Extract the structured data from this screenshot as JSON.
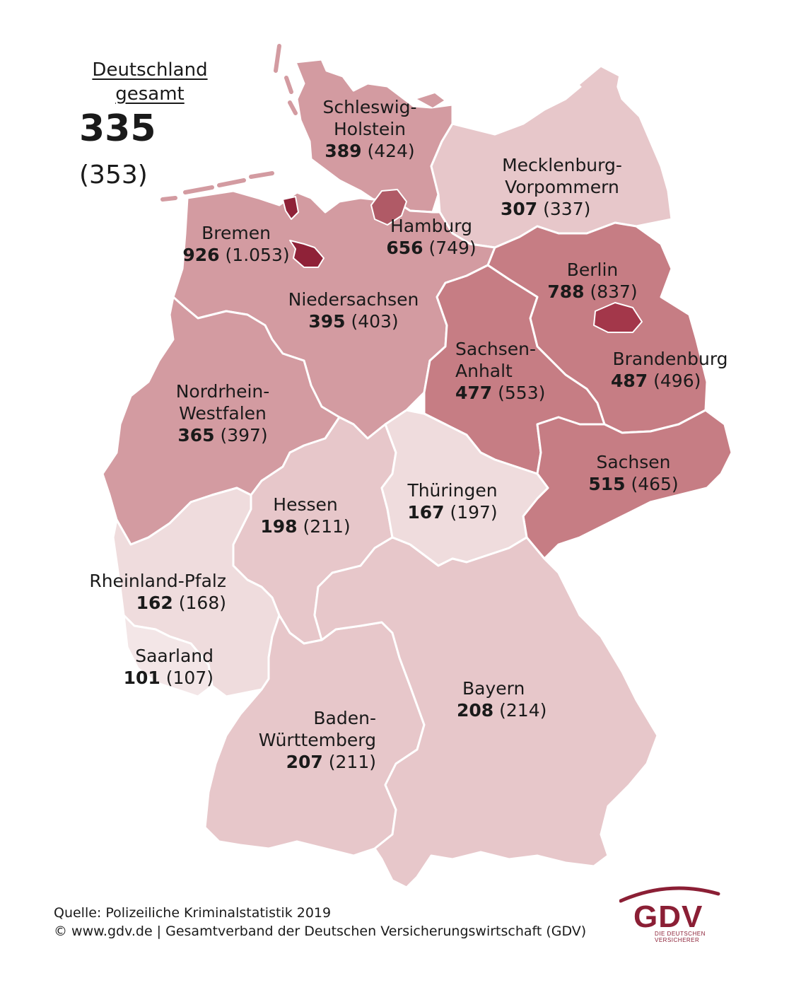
{
  "total": {
    "title_line1": "Deutschland",
    "title_line2": "gesamt",
    "value": "335",
    "previous": "(353)"
  },
  "states": {
    "sh": {
      "name1": "Schleswig-",
      "name2": "Holstein",
      "value": "389",
      "previous": "(424)"
    },
    "mv": {
      "name1": "Mecklenburg-",
      "name2": "Vorpommern",
      "value": "307",
      "previous": "(337)"
    },
    "hh": {
      "name1": "Hamburg",
      "value": "656",
      "previous": "(749)"
    },
    "hb": {
      "name1": "Bremen",
      "value": "926",
      "previous": "(1.053)"
    },
    "ni": {
      "name1": "Niedersachsen",
      "value": "395",
      "previous": "(403)"
    },
    "be": {
      "name1": "Berlin",
      "value": "788",
      "previous": "(837)"
    },
    "bb": {
      "name1": "Brandenburg",
      "value": "487",
      "previous": "(496)"
    },
    "st": {
      "name1": "Sachsen-",
      "name2": "Anhalt",
      "value": "477",
      "previous": "(553)"
    },
    "nw": {
      "name1": "Nordrhein-",
      "name2": "Westfalen",
      "value": "365",
      "previous": "(397)"
    },
    "sn": {
      "name1": "Sachsen",
      "value": "515",
      "previous": "(465)"
    },
    "he": {
      "name1": "Hessen",
      "value": "198",
      "previous": "(211)"
    },
    "th": {
      "name1": "Thüringen",
      "value": "167",
      "previous": "(197)"
    },
    "rp": {
      "name1": "Rheinland-Pfalz",
      "value": "162",
      "previous": "(168)"
    },
    "sl": {
      "name1": "Saarland",
      "value": "101",
      "previous": "(107)"
    },
    "by": {
      "name1": "Bayern",
      "value": "208",
      "previous": "(214)"
    },
    "bw": {
      "name1": "Baden-",
      "name2": "Württemberg",
      "value": "207",
      "previous": "(211)"
    }
  },
  "footer": {
    "source": "Quelle: Polizeiliche Kriminalstatistik 2019",
    "copyright": "© www.gdv.de | Gesamtverband der Deutschen Versicherungswirtschaft (GDV)"
  },
  "logo": {
    "word": "GDV",
    "subtitle": "DIE DEUTSCHEN VERSICHERER"
  },
  "colors": {
    "level1": "#efdcdd",
    "level2": "#e7c7ca",
    "level3": "#d39ba1",
    "level4": "#c67d84",
    "level5": "#b05a66",
    "level6": "#a3374a",
    "level7": "#8f2238",
    "brand": "#8b1f35"
  }
}
